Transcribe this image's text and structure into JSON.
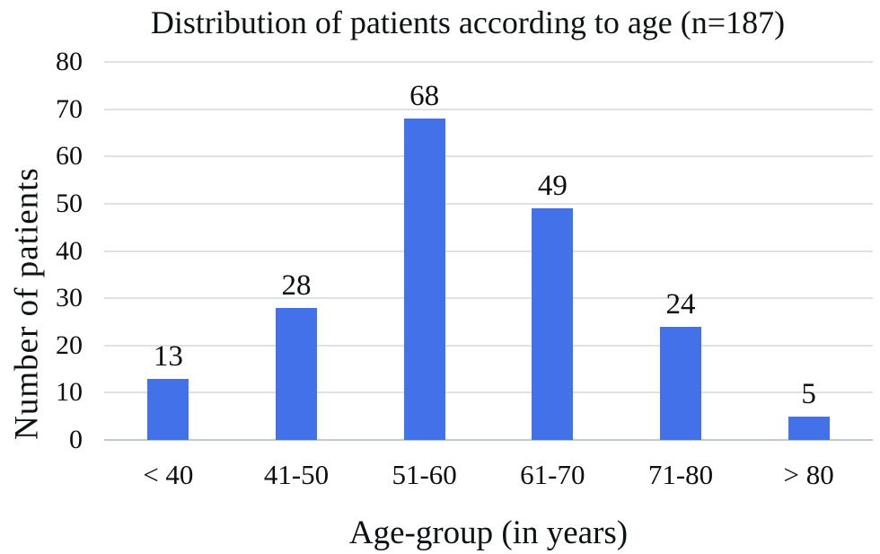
{
  "chart_data": {
    "type": "bar",
    "title": "Distribution of patients according to age (n=187)",
    "xlabel": "Age-group (in years)",
    "ylabel": "Number of patients",
    "categories": [
      "< 40",
      "41-50",
      "51-60",
      "61-70",
      "71-80",
      "> 80"
    ],
    "values": [
      13,
      28,
      68,
      49,
      24,
      5
    ],
    "data_labels_shown": true,
    "ylim": [
      0,
      80
    ],
    "ytick_step": 10,
    "ytick_labels": [
      "0",
      "10",
      "20",
      "30",
      "40",
      "50",
      "60",
      "70",
      "80"
    ],
    "grid": true,
    "legend": "none",
    "colors": {
      "bar": "#4271e9",
      "gridline": "#dce3e1",
      "axis_line": "#c3cac7",
      "text": "#0e0e0e",
      "background": "#ffffff"
    }
  }
}
